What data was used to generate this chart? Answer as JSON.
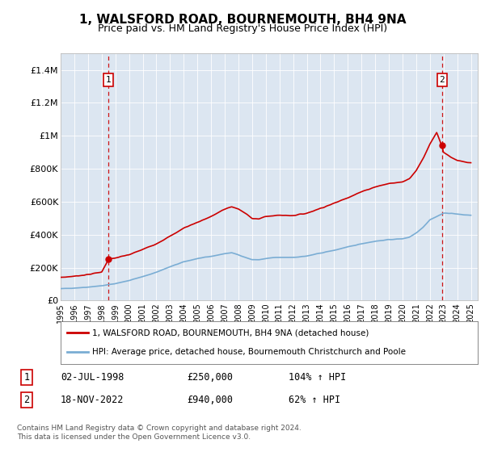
{
  "title": "1, WALSFORD ROAD, BOURNEMOUTH, BH4 9NA",
  "subtitle": "Price paid vs. HM Land Registry's House Price Index (HPI)",
  "legend_line1": "1, WALSFORD ROAD, BOURNEMOUTH, BH4 9NA (detached house)",
  "legend_line2": "HPI: Average price, detached house, Bournemouth Christchurch and Poole",
  "sale1_date": "02-JUL-1998",
  "sale1_price": 250000,
  "sale1_label": "104% ↑ HPI",
  "sale2_date": "18-NOV-2022",
  "sale2_price": 940000,
  "sale2_label": "62% ↑ HPI",
  "footer": "Contains HM Land Registry data © Crown copyright and database right 2024.\nThis data is licensed under the Open Government Licence v3.0.",
  "bg_color": "#dce6f1",
  "red_color": "#cc0000",
  "blue_color": "#7aadd4",
  "sale1_year": 1998.5,
  "sale2_year": 2022.88,
  "ylim": [
    0,
    1500000
  ],
  "xlim_start": 1995.0,
  "xlim_end": 2025.5,
  "yticks": [
    0,
    200000,
    400000,
    600000,
    800000,
    1000000,
    1200000,
    1400000
  ],
  "ylabels": [
    "£0",
    "£200K",
    "£400K",
    "£600K",
    "£800K",
    "£1M",
    "£1.2M",
    "£1.4M"
  ]
}
